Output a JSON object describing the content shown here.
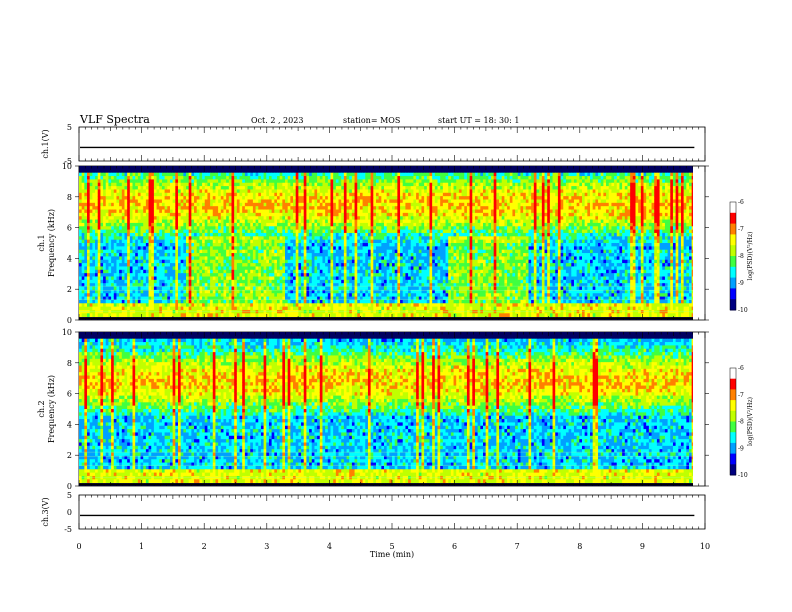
{
  "header": {
    "title": "VLF Spectra",
    "date": "Oct. 2 , 2023",
    "station": "station= MOS",
    "start": "start UT =  18: 30: 1"
  },
  "chart_data": [
    {
      "type": "line",
      "panel": "ch1-waveform",
      "ylabel": "ch.1(V)",
      "ylim": [
        -5,
        5
      ],
      "yticks": [
        5,
        -5
      ],
      "xlim": [
        0,
        10
      ],
      "series": [
        {
          "values": [
            -1,
            -1
          ]
        }
      ]
    },
    {
      "type": "heatmap",
      "panel": "ch1-spectrogram",
      "ylabel": "ch.1\nFrequency (kHz)",
      "ylabel_line1": "ch.1",
      "ylabel_line2": "Frequency (kHz)",
      "ylim": [
        0,
        10
      ],
      "yticks": [
        0,
        2,
        4,
        6,
        8,
        10
      ],
      "xlim": [
        0,
        9.83
      ],
      "colorbar": {
        "label": "log(PSD)(V²/Hz)",
        "range": [
          -10,
          -6
        ],
        "ticks": [
          -6,
          -7,
          -8,
          -9,
          -10
        ]
      },
      "band_kHz": [
        0.3,
        9.5
      ],
      "dense_intervals_min": [
        [
          1.7,
          3.3
        ],
        [
          5.9,
          7.2
        ]
      ],
      "emission_peak_kHz": 7.5
    },
    {
      "type": "heatmap",
      "panel": "ch2-spectrogram",
      "ylabel": "ch.2\nFrequency (kHz)",
      "ylabel_line1": "ch.2",
      "ylabel_line2": "Frequency (kHz)",
      "ylim": [
        0,
        10
      ],
      "yticks": [
        0,
        2,
        4,
        6,
        8,
        10
      ],
      "xlim": [
        0,
        9.83
      ],
      "colorbar": {
        "label": "log(PSD)(V²/Hz)",
        "range": [
          -10,
          -6
        ],
        "ticks": [
          -6,
          -7,
          -8,
          -9,
          -10
        ]
      },
      "band_kHz": [
        0.3,
        9.5
      ],
      "emission_peak_kHz": 6.8
    },
    {
      "type": "line",
      "panel": "ch3-waveform",
      "ylabel": "ch.3(V)",
      "ylim": [
        -5,
        5
      ],
      "yticks": [
        5,
        0,
        -5
      ],
      "xlim": [
        0,
        10
      ],
      "xlabel": "Time (min)",
      "xticks": [
        0,
        1,
        2,
        3,
        4,
        5,
        6,
        7,
        8,
        9,
        10
      ],
      "series": [
        {
          "values": [
            -1,
            -1
          ]
        }
      ]
    }
  ],
  "colors": {
    "colormap": [
      "#000080",
      "#0000ff",
      "#00a0ff",
      "#00ffff",
      "#40ff40",
      "#c0ff00",
      "#ffff00",
      "#ff8000",
      "#ff0000",
      "#ffffff"
    ],
    "axis": "#000000"
  }
}
